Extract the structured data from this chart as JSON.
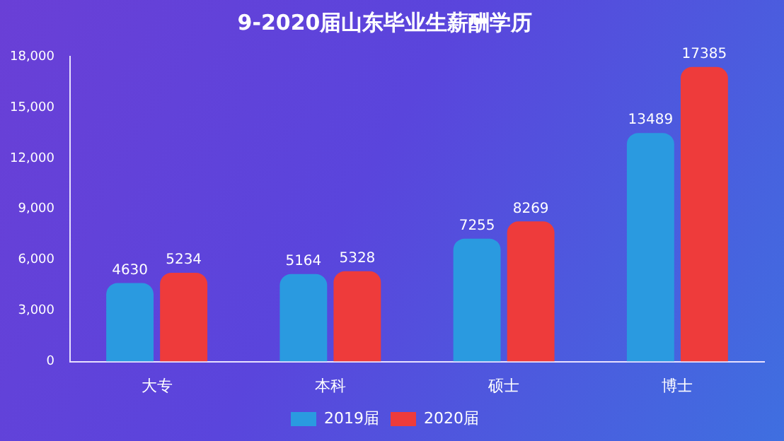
{
  "chart_data": {
    "type": "bar",
    "title": "9-2020届山东毕业生薪酬学历",
    "categories": [
      "大专",
      "本科",
      "硕士",
      "博士"
    ],
    "series": [
      {
        "name": "2019届",
        "color": "#2a9ae0",
        "values": [
          4630,
          5164,
          7255,
          13489
        ]
      },
      {
        "name": "2020届",
        "color": "#ee3b3b",
        "values": [
          5234,
          5328,
          8269,
          17385
        ]
      }
    ],
    "ylim": [
      0,
      18000
    ],
    "yticks": [
      {
        "value": 0,
        "label": "0"
      },
      {
        "value": 3000,
        "label": "3,000"
      },
      {
        "value": 6000,
        "label": "6,000"
      },
      {
        "value": 9000,
        "label": "9,000"
      },
      {
        "value": 12000,
        "label": "12,000"
      },
      {
        "value": 15000,
        "label": "15,000"
      },
      {
        "value": 18000,
        "label": "18,000"
      }
    ],
    "grid": false,
    "legend": "bottom",
    "data_labels": true
  }
}
